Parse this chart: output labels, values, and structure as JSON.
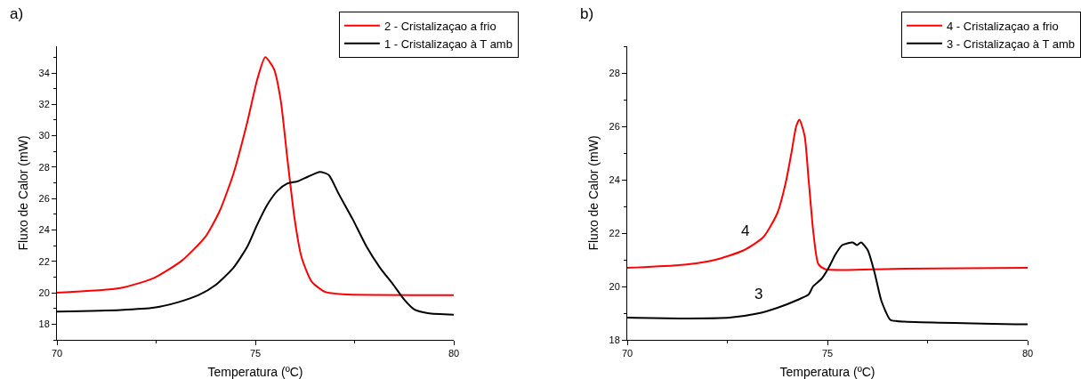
{
  "chart_data": [
    {
      "type": "line",
      "xlabel": "Temperatura (ºC)",
      "ylabel": "Fluxo de Calor (mW)",
      "xlim": [
        70,
        80
      ],
      "xticks": [
        70,
        75,
        80
      ],
      "ylim": [
        17,
        35.7
      ],
      "yticks": [
        18,
        20,
        22,
        24,
        26,
        28,
        30,
        32,
        34
      ],
      "legend": "top right",
      "marker": "none",
      "line_style": "solid",
      "annotations": [
        "a)"
      ],
      "series": [
        {
          "name": "2 - Cristalizaçao a frio",
          "color": "#ff0000",
          "x": [
            70,
            71.6,
            72.45,
            73.15,
            73.75,
            74.1,
            74.45,
            74.8,
            75.05,
            75.25,
            75.47,
            75.64,
            75.8,
            75.99,
            76.16,
            76.42,
            76.76,
            77.2,
            80
          ],
          "values": [
            20.0,
            20.3,
            20.95,
            22.05,
            23.6,
            25.2,
            27.6,
            30.9,
            33.6,
            35.0,
            34.25,
            32.25,
            28.7,
            24.7,
            22.3,
            20.7,
            20.05,
            19.9,
            19.85
          ]
        },
        {
          "name": "1 - Cristalizaçao à T amb",
          "color": "#000000",
          "x": [
            70,
            71.6,
            72.45,
            73.06,
            73.57,
            74.0,
            74.45,
            74.8,
            75.04,
            75.3,
            75.56,
            75.8,
            76.07,
            76.33,
            76.63,
            76.85,
            77.1,
            77.45,
            77.8,
            78.14,
            78.48,
            78.74,
            79.0,
            79.35,
            80
          ],
          "values": [
            18.8,
            18.9,
            19.05,
            19.4,
            19.85,
            20.5,
            21.6,
            22.95,
            24.3,
            25.6,
            26.5,
            26.95,
            27.1,
            27.4,
            27.7,
            27.5,
            26.3,
            24.7,
            22.95,
            21.6,
            20.5,
            19.6,
            18.95,
            18.7,
            18.6
          ]
        }
      ]
    },
    {
      "type": "line",
      "xlabel": "Temperatura (ºC)",
      "ylabel": "Fluxo de Calor (mW)",
      "xlim": [
        70,
        80
      ],
      "xticks": [
        70,
        75,
        80
      ],
      "ylim": [
        18,
        29
      ],
      "yticks": [
        18,
        20,
        22,
        24,
        26,
        28
      ],
      "legend": "top right",
      "marker": "none",
      "line_style": "solid",
      "annotations": [
        "b)",
        {
          "text": "4",
          "x": 72.9,
          "y": 21.35
        },
        {
          "text": "3",
          "x": 73.24,
          "y": 18.98
        }
      ],
      "series": [
        {
          "name": "4 - Cristalizaçao a frio",
          "color": "#ff0000",
          "x": [
            70,
            71.53,
            72.2,
            72.9,
            73.4,
            73.75,
            73.96,
            74.1,
            74.22,
            74.3,
            74.43,
            74.53,
            74.65,
            74.77,
            74.94,
            76.65,
            80
          ],
          "values": [
            20.7,
            20.83,
            21.0,
            21.35,
            21.85,
            22.75,
            23.9,
            25.0,
            26.0,
            26.25,
            25.65,
            24.0,
            22.0,
            20.85,
            20.65,
            20.66,
            20.7
          ]
        },
        {
          "name": "3 - Cristalizaçao à T amb",
          "color": "#000000",
          "x": [
            70,
            71.53,
            72.55,
            73.24,
            73.75,
            74.26,
            74.53,
            74.64,
            74.86,
            75.03,
            75.2,
            75.37,
            75.63,
            75.74,
            75.84,
            76.01,
            76.18,
            76.35,
            76.57,
            76.74,
            80
          ],
          "values": [
            18.83,
            18.8,
            18.83,
            18.98,
            19.2,
            19.5,
            19.7,
            20.0,
            20.3,
            20.7,
            21.2,
            21.55,
            21.65,
            21.55,
            21.65,
            21.35,
            20.5,
            19.45,
            18.75,
            18.7,
            18.58
          ]
        }
      ]
    }
  ]
}
